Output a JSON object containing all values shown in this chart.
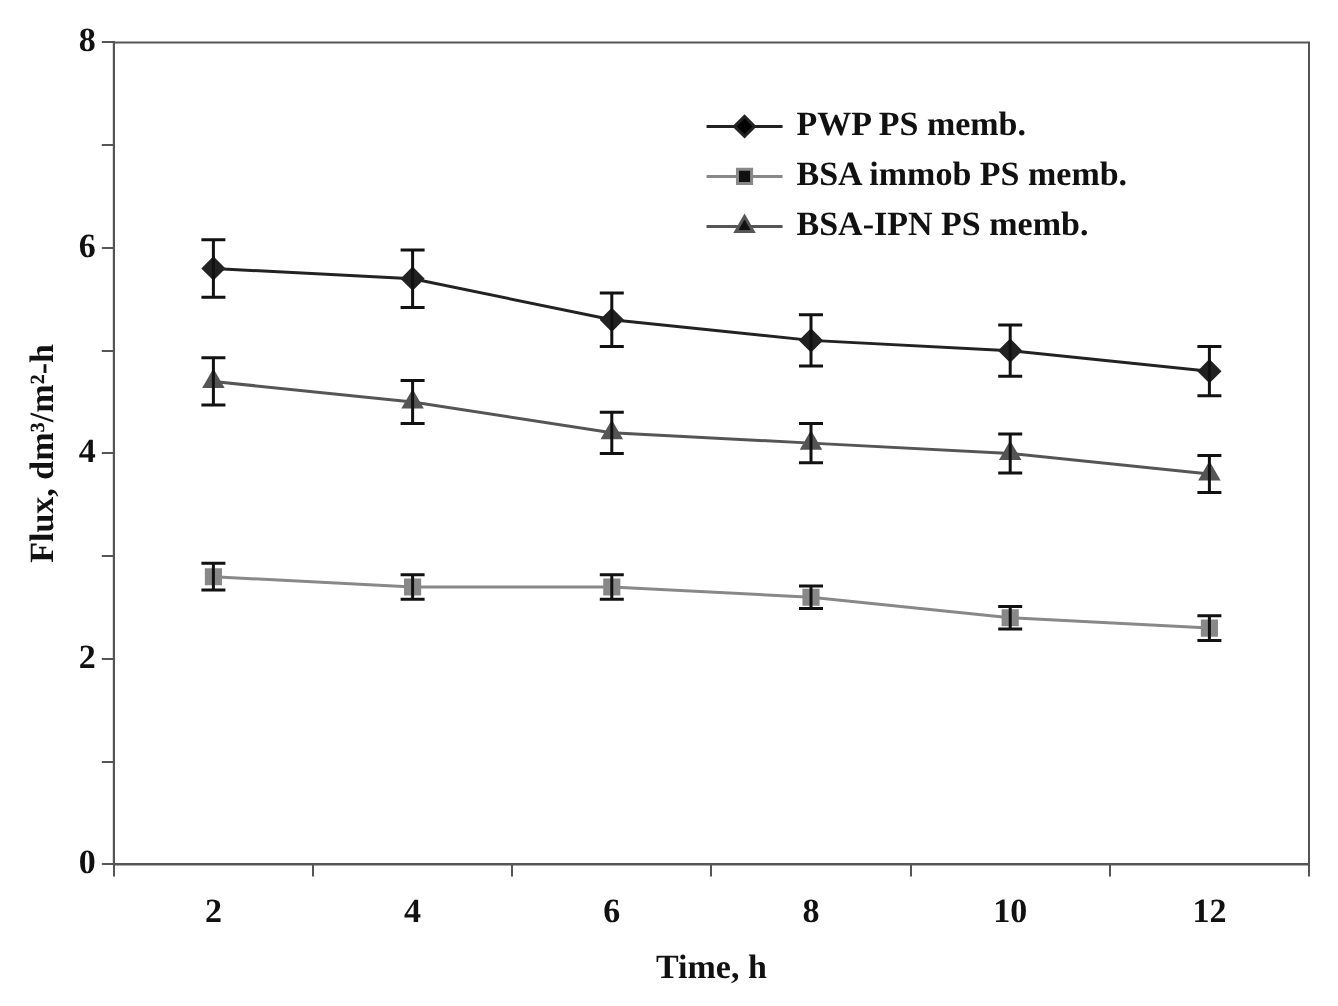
{
  "chart_data": {
    "type": "line",
    "xlabel": "Time, h",
    "ylabel": "Flux, dm³/m²-h",
    "categories": [
      "2",
      "4",
      "6",
      "8",
      "10",
      "12"
    ],
    "series": [
      {
        "name": "PWP PS memb.",
        "color": "#222222",
        "marker": "diamond",
        "values": [
          5.8,
          5.7,
          5.3,
          5.1,
          5.0,
          4.8
        ],
        "errors": [
          0.28,
          0.28,
          0.26,
          0.25,
          0.25,
          0.24
        ]
      },
      {
        "name": "BSA immob PS memb.",
        "color": "#888888",
        "marker": "square",
        "values": [
          2.8,
          2.7,
          2.7,
          2.6,
          2.4,
          2.3
        ],
        "errors": [
          0.13,
          0.12,
          0.12,
          0.11,
          0.11,
          0.12
        ]
      },
      {
        "name": "BSA-IPN PS memb.",
        "color": "#555555",
        "marker": "triangle",
        "values": [
          4.7,
          4.5,
          4.2,
          4.1,
          4.0,
          3.8
        ],
        "errors": [
          0.23,
          0.21,
          0.2,
          0.19,
          0.19,
          0.18
        ]
      }
    ],
    "ylim": [
      0,
      8
    ],
    "yticks": [
      0,
      {
        "value": 1,
        "label": null
      },
      2,
      {
        "value": 3,
        "label": null
      },
      4,
      {
        "value": 5,
        "label": null
      },
      6,
      {
        "value": 7,
        "label": null
      },
      8
    ],
    "grid": false,
    "legend": "top right",
    "line_style": "solid"
  }
}
